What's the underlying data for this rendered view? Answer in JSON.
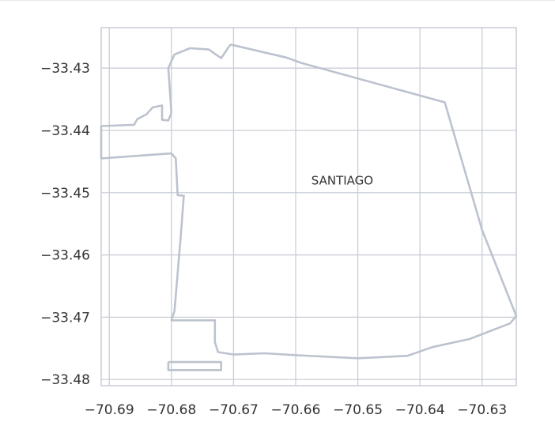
{
  "map": {
    "place_label": "SANTIAGO",
    "place_coord": [
      -70.6525,
      -33.4487
    ],
    "x_range": [
      -70.6913,
      -70.6245
    ],
    "y_range": [
      -33.481,
      -33.4235
    ],
    "x_ticks": [
      -70.69,
      -70.68,
      -70.67,
      -70.66,
      -70.65,
      -70.64,
      -70.63
    ],
    "y_ticks": [
      -33.43,
      -33.44,
      -33.45,
      -33.46,
      -33.47,
      -33.48
    ],
    "x_tick_labels": [
      "−70.69",
      "−70.68",
      "−70.67",
      "−70.66",
      "−70.65",
      "−70.64",
      "−70.63"
    ],
    "y_tick_labels": [
      "−33.43",
      "−33.44",
      "−33.45",
      "−33.46",
      "−33.47",
      "−33.48"
    ],
    "grid": true,
    "colors": {
      "grid": "#c9ced6",
      "frame": "#c9ced6",
      "boundary": "#bcc3ce",
      "text": "#333333"
    },
    "boundary": [
      [
        -70.6705,
        -33.4262
      ],
      [
        -70.6615,
        -33.4283
      ],
      [
        -70.659,
        -33.4292
      ],
      [
        -70.636,
        -33.4355
      ],
      [
        -70.63,
        -33.456
      ],
      [
        -70.6245,
        -33.4698
      ],
      [
        -70.6255,
        -33.471
      ],
      [
        -70.632,
        -33.4735
      ],
      [
        -70.638,
        -33.4748
      ],
      [
        -70.642,
        -33.4762
      ],
      [
        -70.65,
        -33.4766
      ],
      [
        -70.66,
        -33.4761
      ],
      [
        -70.665,
        -33.4758
      ],
      [
        -70.67,
        -33.476
      ],
      [
        -70.6725,
        -33.4756
      ],
      [
        -70.673,
        -33.474
      ],
      [
        -70.673,
        -33.4705
      ],
      [
        -70.68,
        -33.4705
      ],
      [
        -70.6795,
        -33.469
      ],
      [
        -70.6785,
        -33.457
      ],
      [
        -70.678,
        -33.4505
      ],
      [
        -70.679,
        -33.4504
      ],
      [
        -70.6793,
        -33.4445
      ],
      [
        -70.68,
        -33.4437
      ],
      [
        -70.6913,
        -33.4445
      ],
      [
        -70.6913,
        -33.4393
      ],
      [
        -70.686,
        -33.4391
      ],
      [
        -70.6855,
        -33.4382
      ],
      [
        -70.684,
        -33.4374
      ],
      [
        -70.683,
        -33.4363
      ],
      [
        -70.6815,
        -33.436
      ],
      [
        -70.6815,
        -33.4383
      ],
      [
        -70.6805,
        -33.4384
      ],
      [
        -70.68,
        -33.4372
      ],
      [
        -70.6805,
        -33.43
      ],
      [
        -70.6795,
        -33.4278
      ],
      [
        -70.677,
        -33.4268
      ],
      [
        -70.674,
        -33.427
      ],
      [
        -70.672,
        -33.4284
      ],
      [
        -70.6705,
        -33.4262
      ]
    ],
    "inset": [
      [
        -70.6805,
        -33.4772
      ],
      [
        -70.672,
        -33.4772
      ],
      [
        -70.672,
        -33.4785
      ],
      [
        -70.6805,
        -33.4785
      ],
      [
        -70.6805,
        -33.4772
      ]
    ]
  }
}
